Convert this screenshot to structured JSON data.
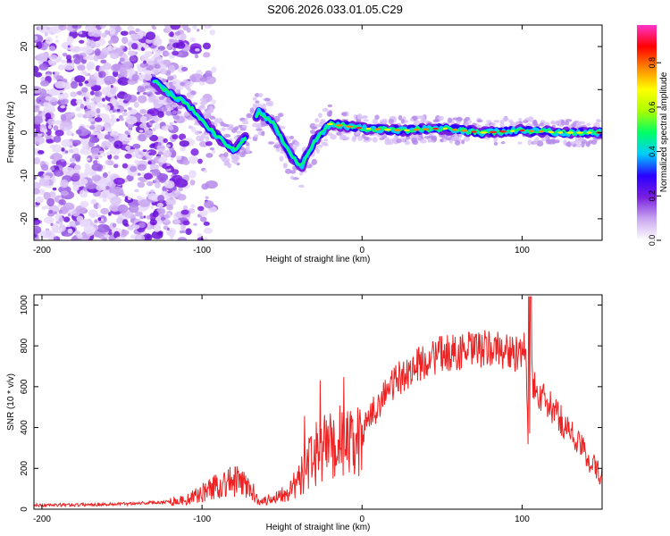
{
  "title": "S206.2026.033.01.05.C29",
  "chart_data": [
    {
      "type": "heatmap",
      "title": "S206.2026.033.01.05.C29",
      "xlabel": "Height of straight line (km)",
      "ylabel": "Frequency (Hz)",
      "xlim": [
        -205,
        150
      ],
      "ylim": [
        -25,
        25
      ],
      "xticks": [
        -200,
        -100,
        0,
        100
      ],
      "yticks": [
        -20,
        -10,
        0,
        10,
        20
      ],
      "colorbar": {
        "label": "Normalized spectral amplitude",
        "range": [
          0,
          0.97
        ],
        "ticks": [
          0,
          0.2,
          0.4,
          0.6,
          0.8
        ],
        "colors": [
          "#ffffff",
          "#c9a6f0",
          "#7a1fe0",
          "#2a00ff",
          "#00ccff",
          "#00ff66",
          "#aaff00",
          "#ffff00",
          "#ff8800",
          "#ff0000",
          "#ff33cc"
        ]
      },
      "ridge": [
        {
          "x": -130,
          "f": 12
        },
        {
          "x": -120,
          "f": 9
        },
        {
          "x": -110,
          "f": 7
        },
        {
          "x": -100,
          "f": 3
        },
        {
          "x": -90,
          "f": -1
        },
        {
          "x": -80,
          "f": -4
        },
        {
          "x": -70,
          "f": 0
        },
        {
          "x": -65,
          "f": 5
        },
        {
          "x": -55,
          "f": 2
        },
        {
          "x": -45,
          "f": -5
        },
        {
          "x": -38,
          "f": -8
        },
        {
          "x": -30,
          "f": -2
        },
        {
          "x": -20,
          "f": 2
        },
        {
          "x": 0,
          "f": 1
        },
        {
          "x": 25,
          "f": 0.5
        },
        {
          "x": 50,
          "f": 1
        },
        {
          "x": 75,
          "f": 0
        },
        {
          "x": 100,
          "f": 0.5
        },
        {
          "x": 125,
          "f": 0
        },
        {
          "x": 150,
          "f": 0
        }
      ]
    },
    {
      "type": "line",
      "xlabel": "Height of straight line (km)",
      "ylabel": "SNR (10 * v/v)",
      "xlim": [
        -205,
        150
      ],
      "ylim": [
        0,
        1050
      ],
      "xticks": [
        -200,
        -100,
        0,
        100
      ],
      "yticks": [
        0,
        200,
        400,
        600,
        800,
        1000
      ],
      "series": [
        {
          "name": "SNR",
          "color": "#ee2222",
          "x": [
            -205,
            -190,
            -175,
            -160,
            -150,
            -140,
            -130,
            -120,
            -110,
            -105,
            -100,
            -95,
            -90,
            -85,
            -80,
            -75,
            -70,
            -65,
            -60,
            -55,
            -50,
            -45,
            -40,
            -35,
            -30,
            -25,
            -20,
            -15,
            -10,
            -5,
            0,
            10,
            20,
            30,
            40,
            50,
            60,
            70,
            80,
            90,
            95,
            100,
            102,
            104,
            106,
            110,
            120,
            130,
            140,
            150
          ],
          "values": [
            20,
            20,
            22,
            24,
            26,
            30,
            32,
            38,
            45,
            60,
            80,
            100,
            120,
            130,
            135,
            130,
            100,
            50,
            40,
            60,
            80,
            100,
            130,
            200,
            260,
            290,
            310,
            340,
            330,
            300,
            370,
            520,
            620,
            680,
            730,
            760,
            770,
            780,
            785,
            780,
            760,
            740,
            820,
            270,
            650,
            560,
            480,
            380,
            270,
            150
          ]
        }
      ]
    }
  ]
}
